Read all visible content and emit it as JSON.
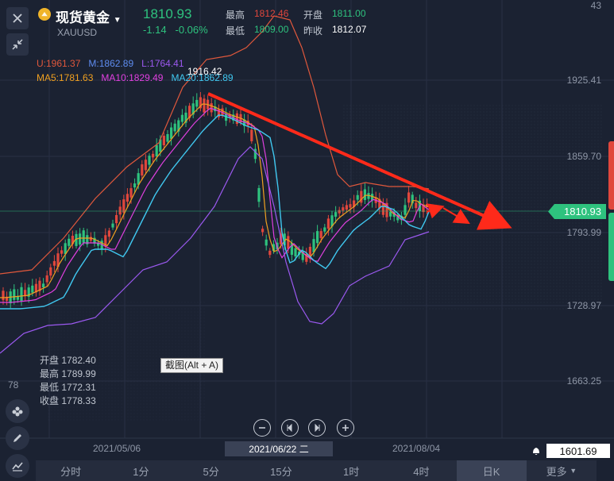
{
  "header": {
    "name": "现货黄金",
    "symbol": "XAUUSD",
    "price": "1810.93",
    "change": "-1.14",
    "change_pct": "-0.06%",
    "high_label": "最高",
    "high": "1812.46",
    "low_label": "最低",
    "low": "1809.00",
    "open_label": "开盘",
    "open": "1811.00",
    "prev_label": "昨收",
    "prev": "1812.07"
  },
  "indicators": {
    "boll_u": "U:1961.37",
    "boll_m": "M:1862.89",
    "boll_l": "L:1764.41",
    "ma5": "MA5:1781.63",
    "ma10": "MA10:1829.49",
    "ma20": "MA20:1862.89"
  },
  "peak_label": "1916.42",
  "price_tag": "1810.93",
  "low_tag": "1601.69",
  "axis": {
    "y_ticks": [
      "1925.41",
      "1859.70",
      "1793.99",
      "1728.97",
      "1663.25"
    ],
    "top_partial": "43",
    "left_partial": "78",
    "x_labels": [
      "2021/05/06",
      "2021/06/22 二",
      "2021/08/04"
    ]
  },
  "ohlc": {
    "open_label": "开盘",
    "open": "1782.40",
    "high_label": "最高",
    "high": "1789.99",
    "low_label": "最低",
    "low": "1772.31",
    "close_label": "收盘",
    "close": "1778.33"
  },
  "tooltip": "截图(Alt + A)",
  "tabs": [
    "分时",
    "1分",
    "5分",
    "15分",
    "1时",
    "4时",
    "日K",
    "更多"
  ],
  "active_tab": "日K",
  "colors": {
    "up": "#e0473c",
    "down": "#2ec27e",
    "ma5": "#f0a020",
    "ma10": "#e040e0",
    "ma20": "#40c8f0",
    "boll": "#e0583c",
    "boll_low": "#9b59f0",
    "trend": "#ff2a1a",
    "bg": "#1b2232"
  },
  "icons": [
    "close-icon",
    "collapse-icon",
    "candlestick-icon",
    "pen-icon",
    "indicator-icon",
    "bell-icon",
    "zoom-out-icon",
    "prev-icon",
    "next-icon",
    "zoom-in-icon"
  ]
}
